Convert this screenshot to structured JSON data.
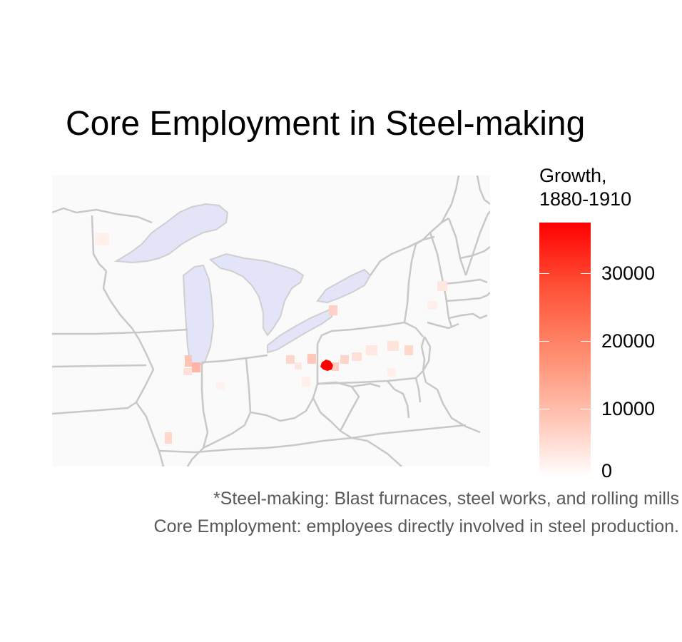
{
  "title": "Core Employment in Steel-making",
  "legend": {
    "title_line1": "Growth,",
    "title_line2": "1880-1910",
    "ticks": [
      {
        "label": "30000",
        "value": 30000
      },
      {
        "label": "20000",
        "value": 20000
      },
      {
        "label": "10000",
        "value": 10000
      },
      {
        "label": "0",
        "value": 0
      }
    ],
    "max_value": 37500,
    "color_low": "#ffffff",
    "color_high": "#ff0000"
  },
  "captions": {
    "line1": "*Steel-making: Blast furnaces, steel works, and rolling mills",
    "line2": "Core Employment: employees directly involved in steel production."
  },
  "colors": {
    "land": "#fafafa",
    "water": "#e4e4f8",
    "borders": "#c8c8c8",
    "hotspot": "#ff0000"
  }
}
